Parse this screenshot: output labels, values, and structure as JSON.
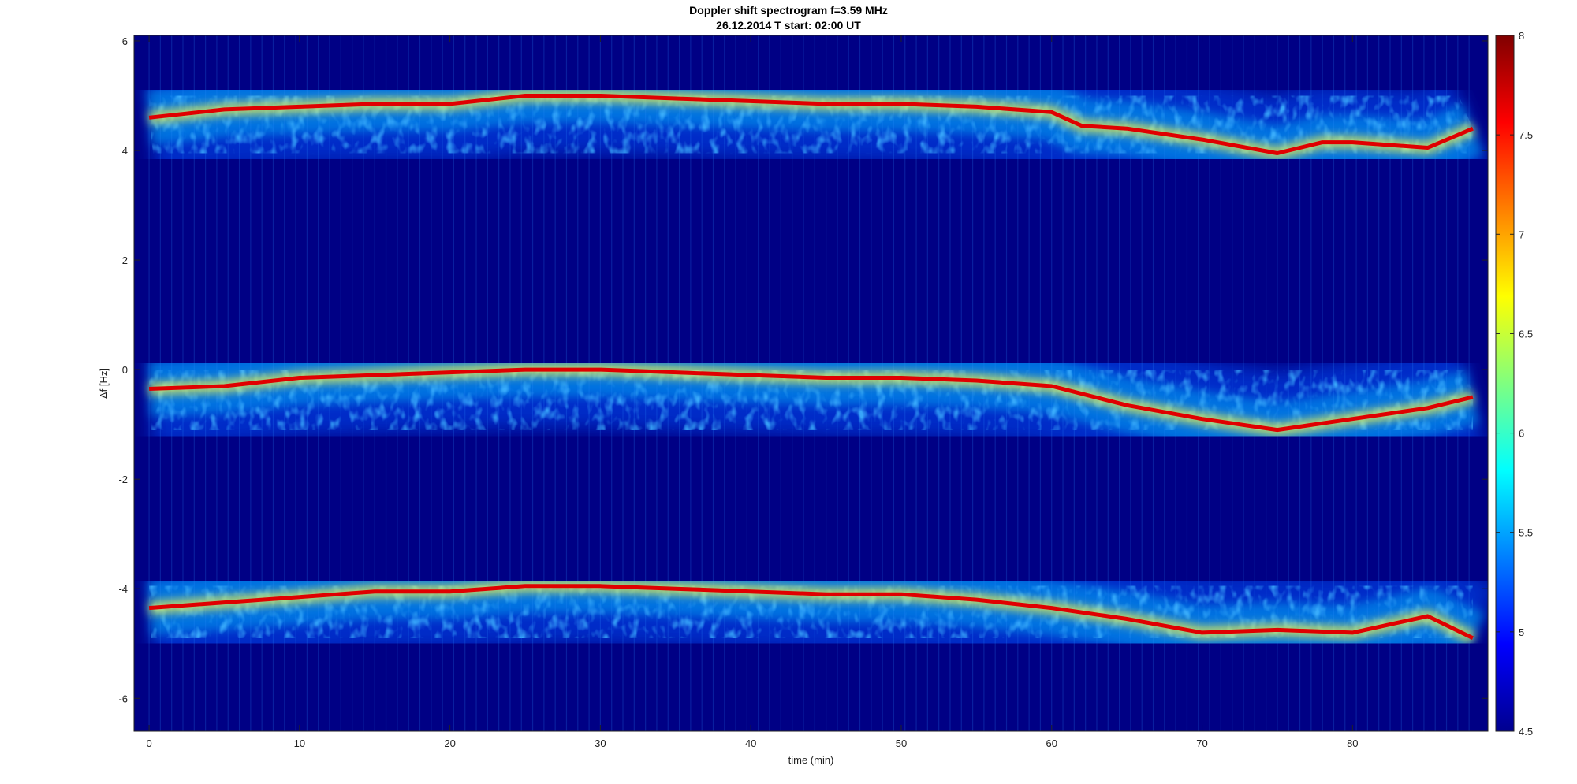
{
  "chart_data": {
    "type": "heatmap",
    "title": "Doppler shift spectrogram f=3.59 MHz",
    "subtitle": "26.12.2014   T start: 02:00 UT",
    "xlabel": "time (min)",
    "ylabel": "Δf [Hz]",
    "xlim": [
      -1,
      89
    ],
    "ylim": [
      -6.6,
      6.1
    ],
    "x_ticks": [
      0,
      10,
      20,
      30,
      40,
      50,
      60,
      70,
      80
    ],
    "y_ticks": [
      -6,
      -4,
      -2,
      0,
      2,
      4,
      6
    ],
    "colorbar": {
      "range": [
        4.5,
        8
      ],
      "ticks": [
        4.5,
        5,
        5.5,
        6,
        6.5,
        7,
        7.5,
        8
      ],
      "colormap": "jet"
    },
    "grid": false,
    "traces": [
      {
        "x": [
          0,
          5,
          10,
          15,
          20,
          25,
          30,
          35,
          40,
          45,
          50,
          55,
          60,
          62,
          65,
          70,
          75,
          78,
          80,
          85,
          88
        ],
        "y": [
          4.6,
          4.75,
          4.8,
          4.85,
          4.85,
          5.0,
          5.0,
          4.95,
          4.9,
          4.85,
          4.85,
          4.8,
          4.7,
          4.45,
          4.4,
          4.2,
          3.95,
          4.15,
          4.15,
          4.05,
          4.4
        ]
      },
      {
        "x": [
          0,
          5,
          10,
          15,
          20,
          25,
          30,
          35,
          40,
          45,
          50,
          55,
          60,
          65,
          70,
          75,
          80,
          85,
          88
        ],
        "y": [
          -0.35,
          -0.3,
          -0.15,
          -0.1,
          -0.05,
          0.0,
          0.0,
          -0.05,
          -0.1,
          -0.15,
          -0.15,
          -0.2,
          -0.3,
          -0.65,
          -0.9,
          -1.1,
          -0.9,
          -0.7,
          -0.5
        ]
      },
      {
        "x": [
          0,
          5,
          10,
          15,
          20,
          25,
          30,
          35,
          40,
          45,
          50,
          55,
          60,
          65,
          70,
          75,
          80,
          85,
          88
        ],
        "y": [
          -4.35,
          -4.25,
          -4.15,
          -4.05,
          -4.05,
          -3.95,
          -3.95,
          -4.0,
          -4.05,
          -4.1,
          -4.1,
          -4.2,
          -4.35,
          -4.55,
          -4.8,
          -4.75,
          -4.8,
          -4.5,
          -4.9
        ]
      }
    ],
    "colors": {
      "background": "#000085",
      "low": "#00008f",
      "high": "#800000"
    }
  }
}
